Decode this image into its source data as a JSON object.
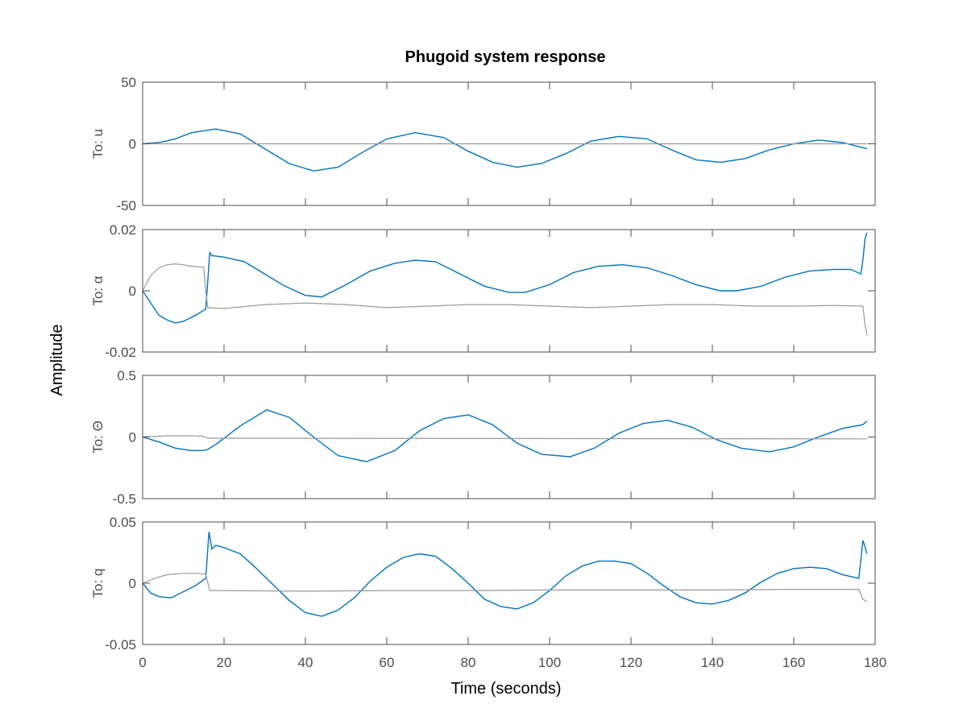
{
  "chart_data": {
    "type": "line",
    "title": "Phugoid system response",
    "xlabel": "Time (seconds)",
    "ylabel": "Amplitude",
    "xlim": [
      0,
      180
    ],
    "xticks": [
      0,
      20,
      40,
      60,
      80,
      100,
      120,
      140,
      160,
      180
    ],
    "xtick_labels": [
      "0",
      "20",
      "40",
      "60",
      "80",
      "100",
      "120",
      "140",
      "160",
      "180"
    ],
    "grid": false,
    "colors": {
      "blue": "#0072bd",
      "gray": "#999999",
      "axis": "#4d4d4d"
    },
    "panels": [
      {
        "label": "To: u",
        "ylim": [
          -50,
          50
        ],
        "yticks": [
          -50,
          0,
          50
        ],
        "ytick_labels": [
          "-50",
          "0",
          "50"
        ],
        "series": [
          {
            "color": "blue",
            "x": [
              0,
              4,
              8,
              12,
              18,
              24,
              30,
              36,
              42,
              48,
              54,
              60,
              67,
              74,
              80,
              86,
              92,
              98,
              104,
              110,
              117,
              124,
              130,
              136,
              142,
              148,
              154,
              160,
              166,
              172,
              178
            ],
            "y": [
              0,
              1,
              4,
              9,
              12,
              8,
              -4,
              -16,
              -22,
              -19,
              -7,
              4,
              9,
              5,
              -6,
              -15,
              -19,
              -16,
              -8,
              2,
              6,
              4,
              -5,
              -13,
              -15,
              -12,
              -5,
              0,
              3,
              1,
              -4
            ]
          },
          {
            "color": "gray",
            "x": [
              0,
              178
            ],
            "y": [
              0,
              0
            ]
          }
        ]
      },
      {
        "label": "To: α",
        "ylim": [
          -0.02,
          0.02
        ],
        "yticks": [
          -0.02,
          0,
          0.02
        ],
        "ytick_labels": [
          "-0.02",
          "0",
          "0.02"
        ],
        "series": [
          {
            "color": "blue",
            "x": [
              0,
              2,
              4,
              6,
              8,
              10,
              13,
              15.5,
              16,
              16.5,
              17,
              20,
              25,
              30,
              35,
              40,
              44,
              50,
              56,
              62,
              67,
              72,
              78,
              84,
              90,
              94,
              100,
              106,
              112,
              118,
              124,
              130,
              136,
              142,
              146,
              152,
              158,
              164,
              170,
              174,
              176.5,
              177,
              177.5,
              178
            ],
            "y": [
              0,
              -0.004,
              -0.008,
              -0.0095,
              -0.0105,
              -0.01,
              -0.008,
              -0.006,
              0.003,
              0.0125,
              0.0115,
              0.011,
              0.0095,
              0.0055,
              0.0015,
              -0.0015,
              -0.002,
              0.002,
              0.0065,
              0.009,
              0.01,
              0.0095,
              0.0055,
              0.0015,
              -0.0005,
              -0.0005,
              0.002,
              0.006,
              0.008,
              0.0085,
              0.0075,
              0.005,
              0.002,
              0.0,
              0.0,
              0.0015,
              0.0045,
              0.0065,
              0.007,
              0.007,
              0.0055,
              0.01,
              0.017,
              0.019
            ]
          },
          {
            "color": "gray",
            "x": [
              0,
              2,
              4,
              6,
              8,
              10,
              12,
              15,
              15.5,
              16,
              20,
              30,
              40,
              50,
              60,
              70,
              80,
              90,
              100,
              110,
              120,
              130,
              140,
              150,
              160,
              170,
              177,
              177.5,
              178
            ],
            "y": [
              0,
              0.005,
              0.0075,
              0.0085,
              0.0088,
              0.0085,
              0.008,
              0.0077,
              0.0,
              -0.0055,
              -0.0058,
              -0.0045,
              -0.004,
              -0.0045,
              -0.0055,
              -0.005,
              -0.0045,
              -0.0045,
              -0.005,
              -0.0055,
              -0.005,
              -0.0045,
              -0.0045,
              -0.005,
              -0.005,
              -0.0048,
              -0.005,
              -0.011,
              -0.0145
            ]
          }
        ]
      },
      {
        "label": "To: Θ",
        "ylim": [
          -0.5,
          0.5
        ],
        "yticks": [
          -0.5,
          0,
          0.5
        ],
        "ytick_labels": [
          "-0.5",
          "0",
          "0.5"
        ],
        "series": [
          {
            "color": "blue",
            "x": [
              0,
              4,
              8,
              12,
              15,
              16,
              18,
              24,
              30.5,
              36,
              42,
              48,
              55,
              62,
              68,
              74,
              80,
              86,
              92,
              98,
              105,
              111,
              117,
              123,
              129,
              135,
              141,
              147,
              154,
              160,
              166,
              172,
              177,
              178
            ],
            "y": [
              0,
              -0.04,
              -0.09,
              -0.11,
              -0.11,
              -0.1,
              -0.06,
              0.09,
              0.22,
              0.16,
              0.0,
              -0.15,
              -0.2,
              -0.11,
              0.05,
              0.15,
              0.18,
              0.1,
              -0.05,
              -0.14,
              -0.16,
              -0.09,
              0.03,
              0.11,
              0.135,
              0.08,
              -0.02,
              -0.09,
              -0.12,
              -0.08,
              0.0,
              0.07,
              0.1,
              0.13
            ]
          },
          {
            "color": "gray",
            "x": [
              0,
              6,
              12,
              15,
              16,
              178
            ],
            "y": [
              0,
              0.01,
              0.01,
              0.005,
              -0.01,
              -0.015
            ]
          }
        ]
      },
      {
        "label": "To: q",
        "ylim": [
          -0.05,
          0.05
        ],
        "yticks": [
          -0.05,
          0,
          0.05
        ],
        "ytick_labels": [
          "-0.05",
          "0",
          "0.05"
        ],
        "series": [
          {
            "color": "blue",
            "x": [
              0,
              2,
              4,
              7,
              10,
              13,
              15.5,
              16.3,
              17,
              18,
              20,
              24,
              28,
              32,
              36,
              40,
              44,
              48,
              52,
              56,
              60,
              64,
              68,
              72,
              76,
              80,
              84,
              88,
              92,
              96,
              100,
              104,
              108,
              112,
              116,
              120,
              124,
              128,
              132,
              136,
              140,
              144,
              148,
              152,
              156,
              160,
              164,
              168,
              172,
              176,
              177,
              177.5,
              178
            ],
            "y": [
              0,
              -0.008,
              -0.011,
              -0.012,
              -0.007,
              -0.002,
              0.004,
              0.042,
              0.028,
              0.031,
              0.029,
              0.024,
              0.012,
              -0.001,
              -0.014,
              -0.024,
              -0.027,
              -0.022,
              -0.012,
              0.002,
              0.013,
              0.021,
              0.024,
              0.022,
              0.012,
              0.0,
              -0.013,
              -0.019,
              -0.021,
              -0.016,
              -0.006,
              0.006,
              0.014,
              0.018,
              0.018,
              0.016,
              0.008,
              -0.002,
              -0.011,
              -0.016,
              -0.017,
              -0.014,
              -0.008,
              0.001,
              0.008,
              0.012,
              0.013,
              0.012,
              0.007,
              0.004,
              0.035,
              0.03,
              0.024
            ]
          },
          {
            "color": "gray",
            "x": [
              0,
              3,
              6,
              10,
              14,
              15.5,
              16.5,
              20,
              40,
              60,
              80,
              100,
              120,
              140,
              160,
              176,
              177,
              178
            ],
            "y": [
              0,
              0.004,
              0.007,
              0.008,
              0.008,
              0.007,
              -0.006,
              -0.006,
              -0.0065,
              -0.006,
              -0.006,
              -0.0055,
              -0.0055,
              -0.0055,
              -0.005,
              -0.005,
              -0.013,
              -0.015
            ]
          }
        ]
      }
    ]
  }
}
